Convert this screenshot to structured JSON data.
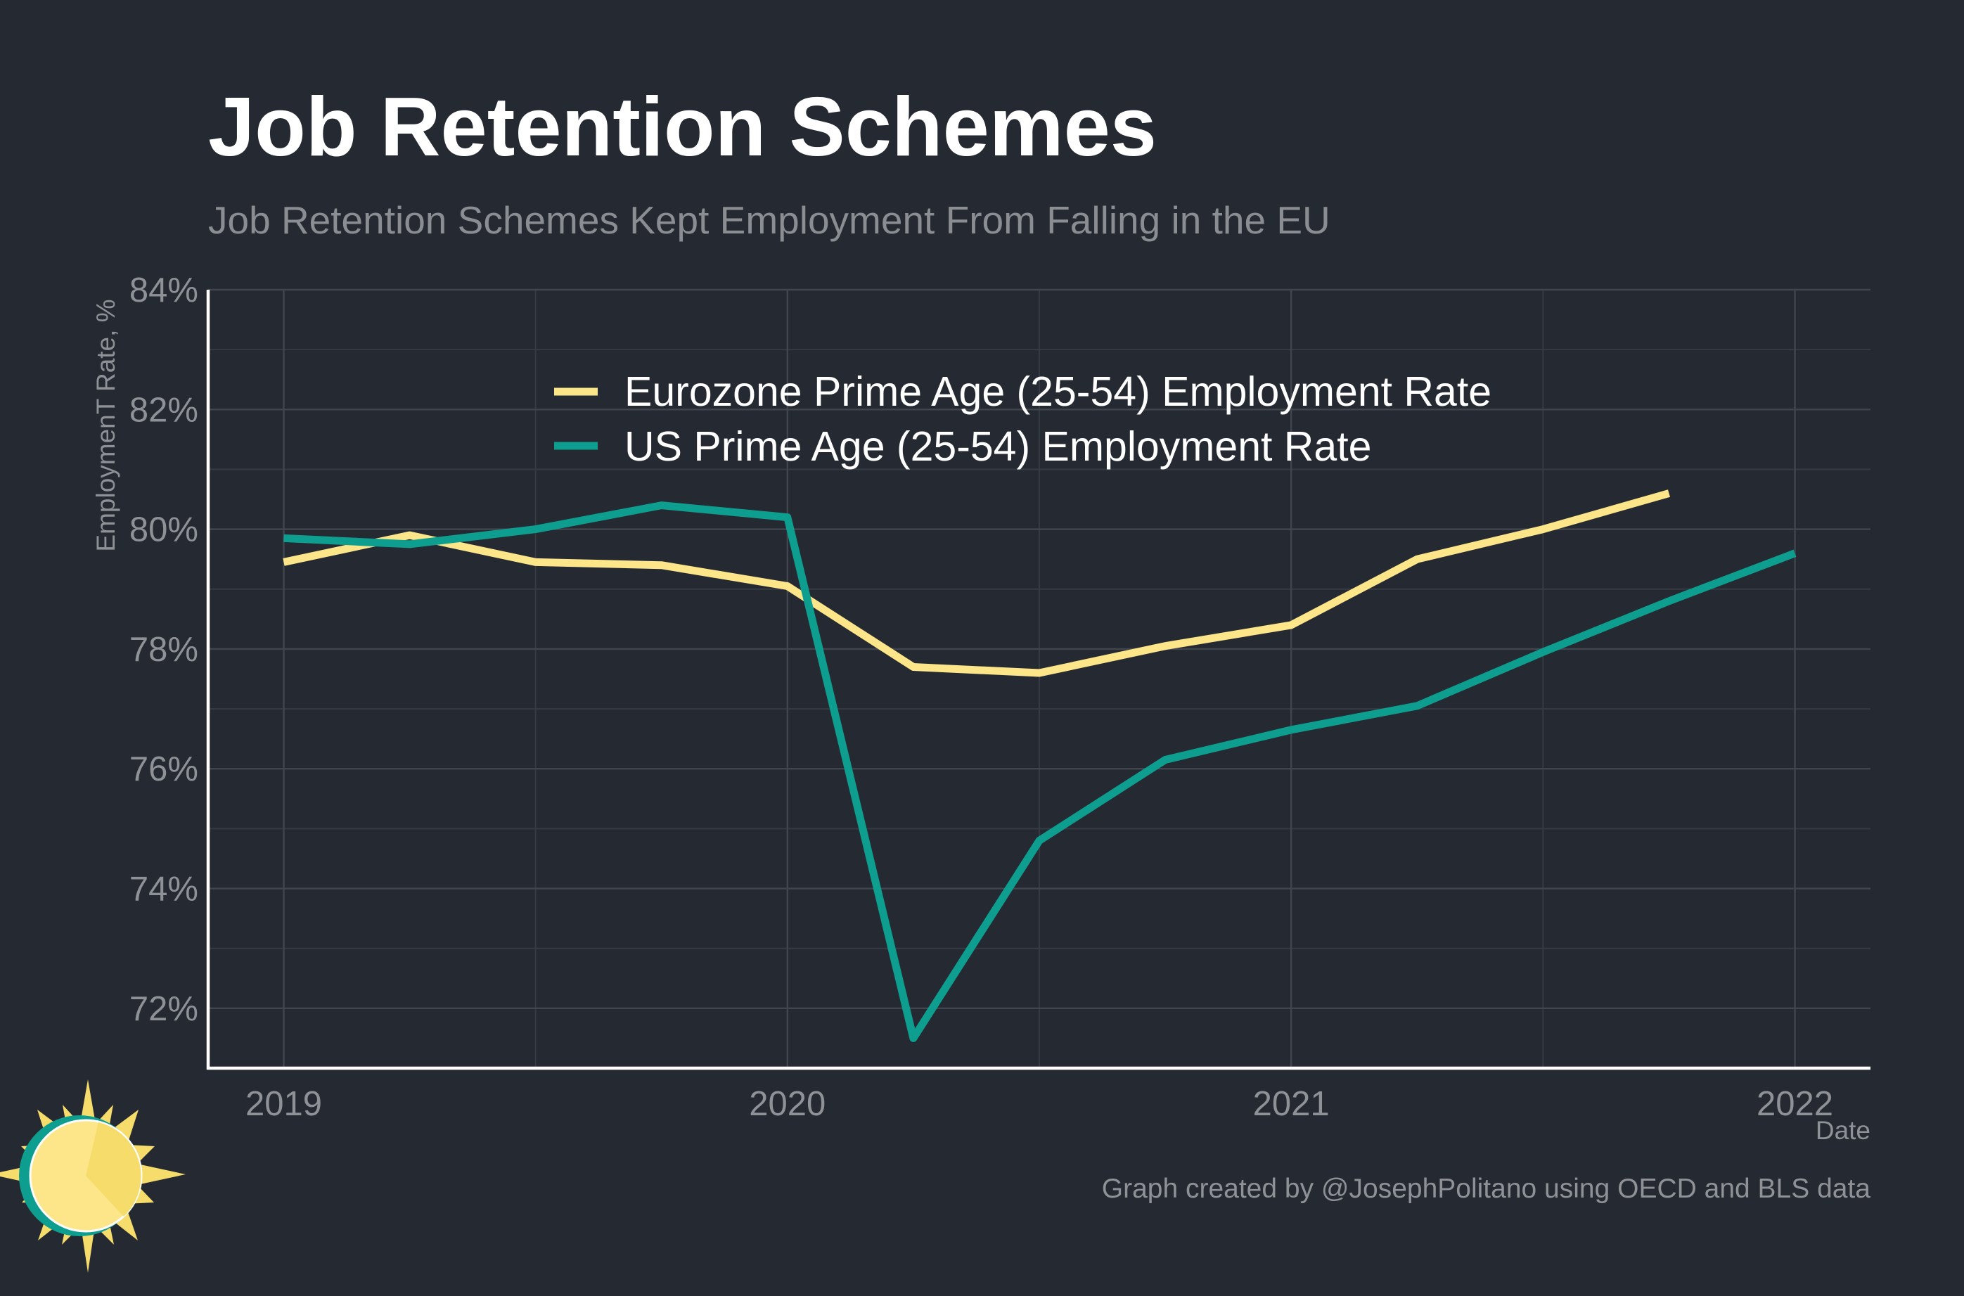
{
  "title": "Job Retention Schemes",
  "subtitle": "Job Retention Schemes Kept Employment From Falling in the EU",
  "caption": "Graph created by @JosephPolitano using OECD and BLS data",
  "chart_data": {
    "type": "line",
    "title": "Job Retention Schemes",
    "subtitle": "Job Retention Schemes Kept Employment From Falling in the EU",
    "xlabel": "Date",
    "ylabel": "EmploymenT Rate, %",
    "xlim": [
      2018.85,
      2022.15
    ],
    "ylim": [
      71.0,
      84.0
    ],
    "x_ticks": [
      {
        "value": 2019,
        "label": "2019"
      },
      {
        "value": 2020,
        "label": "2020"
      },
      {
        "value": 2021,
        "label": "2021"
      },
      {
        "value": 2022,
        "label": "2022"
      }
    ],
    "x_minor_ticks": [
      2019.5,
      2020.5,
      2021.5
    ],
    "y_ticks": [
      {
        "value": 72,
        "label": "72%"
      },
      {
        "value": 74,
        "label": "74%"
      },
      {
        "value": 76,
        "label": "76%"
      },
      {
        "value": 78,
        "label": "78%"
      },
      {
        "value": 80,
        "label": "80%"
      },
      {
        "value": 82,
        "label": "82%"
      },
      {
        "value": 84,
        "label": "84%"
      }
    ],
    "y_minor_ticks": [
      73,
      75,
      77,
      79,
      81,
      83
    ],
    "grid": true,
    "legend_position": "top-center",
    "series": [
      {
        "name": "Eurozone Prime Age (25-54) Employment Rate",
        "color": "#fde68a",
        "x": [
          2019.0,
          2019.25,
          2019.5,
          2019.75,
          2020.0,
          2020.25,
          2020.5,
          2020.75,
          2021.0,
          2021.25,
          2021.5,
          2021.75
        ],
        "y": [
          79.45,
          79.9,
          79.45,
          79.4,
          79.05,
          77.7,
          77.6,
          78.05,
          78.4,
          79.5,
          80.0,
          80.6
        ]
      },
      {
        "name": "US Prime Age (25-54) Employment Rate",
        "color": "#0d9e8f",
        "x": [
          2019.0,
          2019.25,
          2019.5,
          2019.75,
          2020.0,
          2020.25,
          2020.5,
          2020.75,
          2021.0,
          2021.25,
          2021.5,
          2021.75,
          2022.0
        ],
        "y": [
          79.85,
          79.75,
          80.0,
          80.4,
          80.2,
          71.5,
          74.8,
          76.15,
          76.65,
          77.05,
          77.95,
          78.8,
          79.6
        ]
      }
    ]
  },
  "logo": {
    "icon": "sun-clock-icon",
    "colors": {
      "ring": "#0d9e8f",
      "face": "#fde68a",
      "rays": "#f6dc6a"
    }
  }
}
